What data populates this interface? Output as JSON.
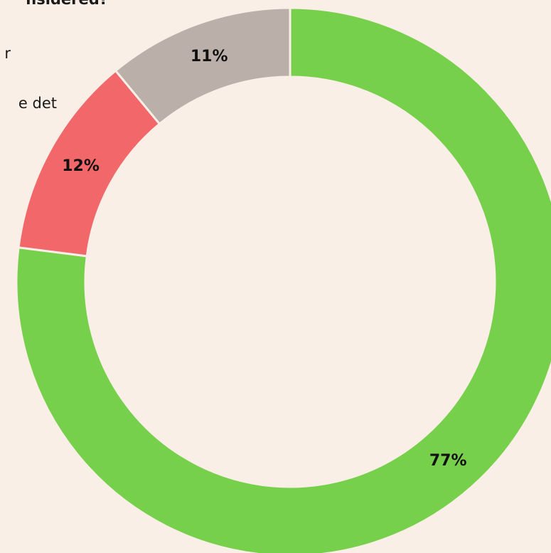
{
  "text_fragments": [
    "nsidered?",
    "r",
    "e det"
  ],
  "chart_data": {
    "type": "donut",
    "values": [
      77,
      12,
      11
    ],
    "value_labels": [
      "77%",
      "12%",
      "11%"
    ],
    "colors": [
      "#77d04b",
      "#f2676a",
      "#bbafa9"
    ]
  }
}
